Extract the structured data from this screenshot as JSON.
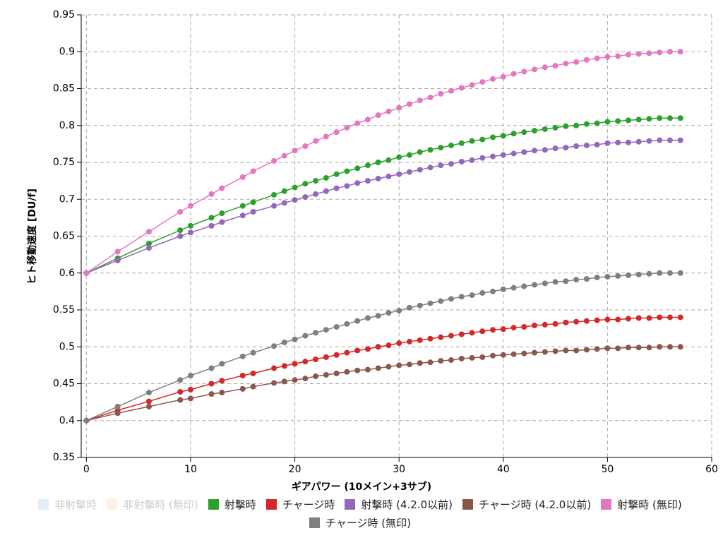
{
  "chart_data": {
    "type": "line",
    "xlabel": "ギアパワー (10メイン+3サブ)",
    "ylabel": "ヒト移動速度 [DU/f]",
    "x": [
      0,
      3,
      6,
      9,
      10,
      12,
      13,
      15,
      16,
      18,
      19,
      20,
      21,
      22,
      23,
      24,
      25,
      26,
      27,
      28,
      29,
      30,
      31,
      32,
      33,
      34,
      35,
      36,
      37,
      38,
      39,
      40,
      41,
      42,
      43,
      44,
      45,
      46,
      47,
      48,
      49,
      50,
      51,
      52,
      53,
      54,
      55,
      56,
      57
    ],
    "xlim": [
      -0.5,
      60
    ],
    "xticks": [
      0,
      10,
      20,
      30,
      40,
      50,
      60
    ],
    "ylim": [
      0.35,
      0.95
    ],
    "yticks": [
      0.35,
      0.4,
      0.45,
      0.5,
      0.55,
      0.6,
      0.65,
      0.7,
      0.75,
      0.8,
      0.85,
      0.9,
      0.95
    ],
    "grid": true,
    "hidden_series": [
      {
        "name": "非射撃時",
        "color": "#1f77b4"
      },
      {
        "name": "非射撃時 (無印)",
        "color": "#ff7f0e"
      }
    ],
    "series": [
      {
        "name": "射撃時",
        "color": "#2ca02c",
        "values": [
          0.6,
          0.62,
          0.64,
          0.658,
          0.664,
          0.675,
          0.681,
          0.691,
          0.696,
          0.706,
          0.711,
          0.716,
          0.721,
          0.725,
          0.729,
          0.734,
          0.738,
          0.742,
          0.746,
          0.75,
          0.753,
          0.757,
          0.76,
          0.764,
          0.767,
          0.77,
          0.773,
          0.776,
          0.779,
          0.781,
          0.784,
          0.786,
          0.789,
          0.791,
          0.793,
          0.795,
          0.797,
          0.799,
          0.8,
          0.802,
          0.803,
          0.805,
          0.806,
          0.807,
          0.808,
          0.809,
          0.81,
          0.81,
          0.81
        ]
      },
      {
        "name": "チャージ時",
        "color": "#d62728",
        "values": [
          0.4,
          0.414,
          0.426,
          0.439,
          0.442,
          0.45,
          0.454,
          0.461,
          0.464,
          0.471,
          0.474,
          0.477,
          0.48,
          0.483,
          0.486,
          0.489,
          0.492,
          0.495,
          0.497,
          0.5,
          0.502,
          0.505,
          0.507,
          0.509,
          0.511,
          0.513,
          0.515,
          0.517,
          0.519,
          0.521,
          0.523,
          0.524,
          0.526,
          0.527,
          0.529,
          0.53,
          0.531,
          0.533,
          0.534,
          0.535,
          0.536,
          0.537,
          0.537,
          0.538,
          0.539,
          0.539,
          0.54,
          0.54,
          0.54
        ]
      },
      {
        "name": "射撃時 (4.2.0以前)",
        "color": "#9467bd",
        "values": [
          0.6,
          0.617,
          0.634,
          0.65,
          0.655,
          0.664,
          0.669,
          0.678,
          0.683,
          0.691,
          0.695,
          0.699,
          0.703,
          0.707,
          0.711,
          0.715,
          0.718,
          0.722,
          0.725,
          0.728,
          0.731,
          0.734,
          0.737,
          0.74,
          0.743,
          0.746,
          0.748,
          0.751,
          0.753,
          0.756,
          0.758,
          0.76,
          0.762,
          0.764,
          0.766,
          0.767,
          0.769,
          0.77,
          0.772,
          0.773,
          0.774,
          0.776,
          0.777,
          0.777,
          0.778,
          0.779,
          0.78,
          0.78,
          0.78
        ]
      },
      {
        "name": "チャージ時 (4.2.0以前)",
        "color": "#8c564b",
        "values": [
          0.4,
          0.41,
          0.419,
          0.428,
          0.43,
          0.436,
          0.438,
          0.443,
          0.446,
          0.451,
          0.453,
          0.455,
          0.457,
          0.46,
          0.462,
          0.464,
          0.466,
          0.468,
          0.469,
          0.471,
          0.473,
          0.475,
          0.476,
          0.478,
          0.479,
          0.481,
          0.482,
          0.484,
          0.485,
          0.486,
          0.488,
          0.489,
          0.49,
          0.491,
          0.492,
          0.493,
          0.494,
          0.495,
          0.495,
          0.496,
          0.497,
          0.498,
          0.498,
          0.499,
          0.499,
          0.499,
          0.5,
          0.5,
          0.5
        ]
      },
      {
        "name": "射撃時 (無印)",
        "color": "#e377c2",
        "values": [
          0.6,
          0.629,
          0.656,
          0.683,
          0.691,
          0.707,
          0.715,
          0.73,
          0.738,
          0.752,
          0.759,
          0.766,
          0.772,
          0.779,
          0.785,
          0.791,
          0.797,
          0.803,
          0.808,
          0.814,
          0.819,
          0.824,
          0.829,
          0.834,
          0.838,
          0.843,
          0.847,
          0.851,
          0.855,
          0.859,
          0.863,
          0.866,
          0.87,
          0.873,
          0.876,
          0.879,
          0.881,
          0.884,
          0.886,
          0.889,
          0.891,
          0.893,
          0.894,
          0.896,
          0.897,
          0.898,
          0.899,
          0.9,
          0.9
        ]
      },
      {
        "name": "チャージ時 (無印)",
        "color": "#7f7f7f",
        "values": [
          0.4,
          0.419,
          0.438,
          0.455,
          0.461,
          0.471,
          0.477,
          0.487,
          0.492,
          0.501,
          0.506,
          0.51,
          0.515,
          0.519,
          0.523,
          0.527,
          0.531,
          0.535,
          0.539,
          0.542,
          0.546,
          0.549,
          0.553,
          0.556,
          0.559,
          0.562,
          0.565,
          0.568,
          0.57,
          0.573,
          0.575,
          0.578,
          0.58,
          0.582,
          0.584,
          0.586,
          0.588,
          0.589,
          0.591,
          0.592,
          0.594,
          0.595,
          0.596,
          0.597,
          0.598,
          0.599,
          0.6,
          0.6,
          0.6
        ]
      }
    ]
  }
}
